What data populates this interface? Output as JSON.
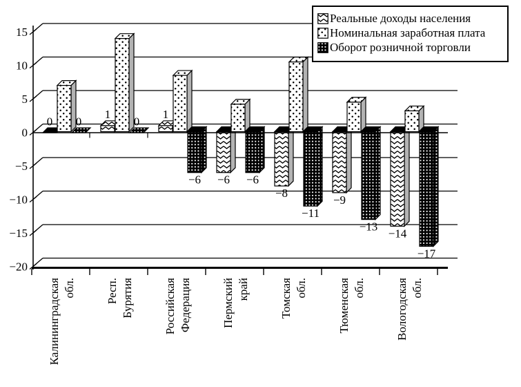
{
  "chart_data": {
    "type": "bar",
    "projection": "3d",
    "title": "",
    "categories": [
      {
        "line1": "Калининградская",
        "line2": "обл."
      },
      {
        "line1": "Респ.",
        "line2": "Бурятия"
      },
      {
        "line1": "Российская",
        "line2": "Федерация"
      },
      {
        "line1": "Пермский",
        "line2": "край"
      },
      {
        "line1": "Томская",
        "line2": "обл."
      },
      {
        "line1": "Тюменская",
        "line2": "обл."
      },
      {
        "line1": "Вологодская",
        "line2": "обл."
      }
    ],
    "series": [
      {
        "name": "Реальные доходы населения",
        "pattern": "wave",
        "values": [
          0,
          1,
          1,
          -6,
          -8,
          -9,
          -14
        ],
        "labels": [
          "0",
          "1",
          "1",
          "−6",
          "−8",
          "−9",
          "−14"
        ]
      },
      {
        "name": "Номинальная заработная плата",
        "pattern": "dots",
        "values": [
          7,
          14,
          8.5,
          4.2,
          10.5,
          4.5,
          3.2
        ],
        "labels": [
          "",
          "",
          "",
          "",
          "",
          "",
          ""
        ]
      },
      {
        "name": "Оборот розничной торговли",
        "pattern": "grid",
        "values": [
          0,
          0,
          -6,
          -6,
          -11,
          -13,
          -17
        ],
        "labels": [
          "0",
          "0",
          "−6",
          "−6",
          "−11",
          "−13",
          "−17"
        ]
      }
    ],
    "y_axis": {
      "min": -20,
      "max": 15,
      "step": 5,
      "tick_labels": [
        "15",
        "10",
        "5",
        "0",
        "−5",
        "−10",
        "−15",
        "−20"
      ]
    },
    "legend_position": "top-right",
    "grid": true,
    "colors": {
      "foreground": "#000000",
      "background": "#ffffff",
      "bar_side_light": "#b3b3b3",
      "bar_cap_negative": "#000000"
    }
  }
}
